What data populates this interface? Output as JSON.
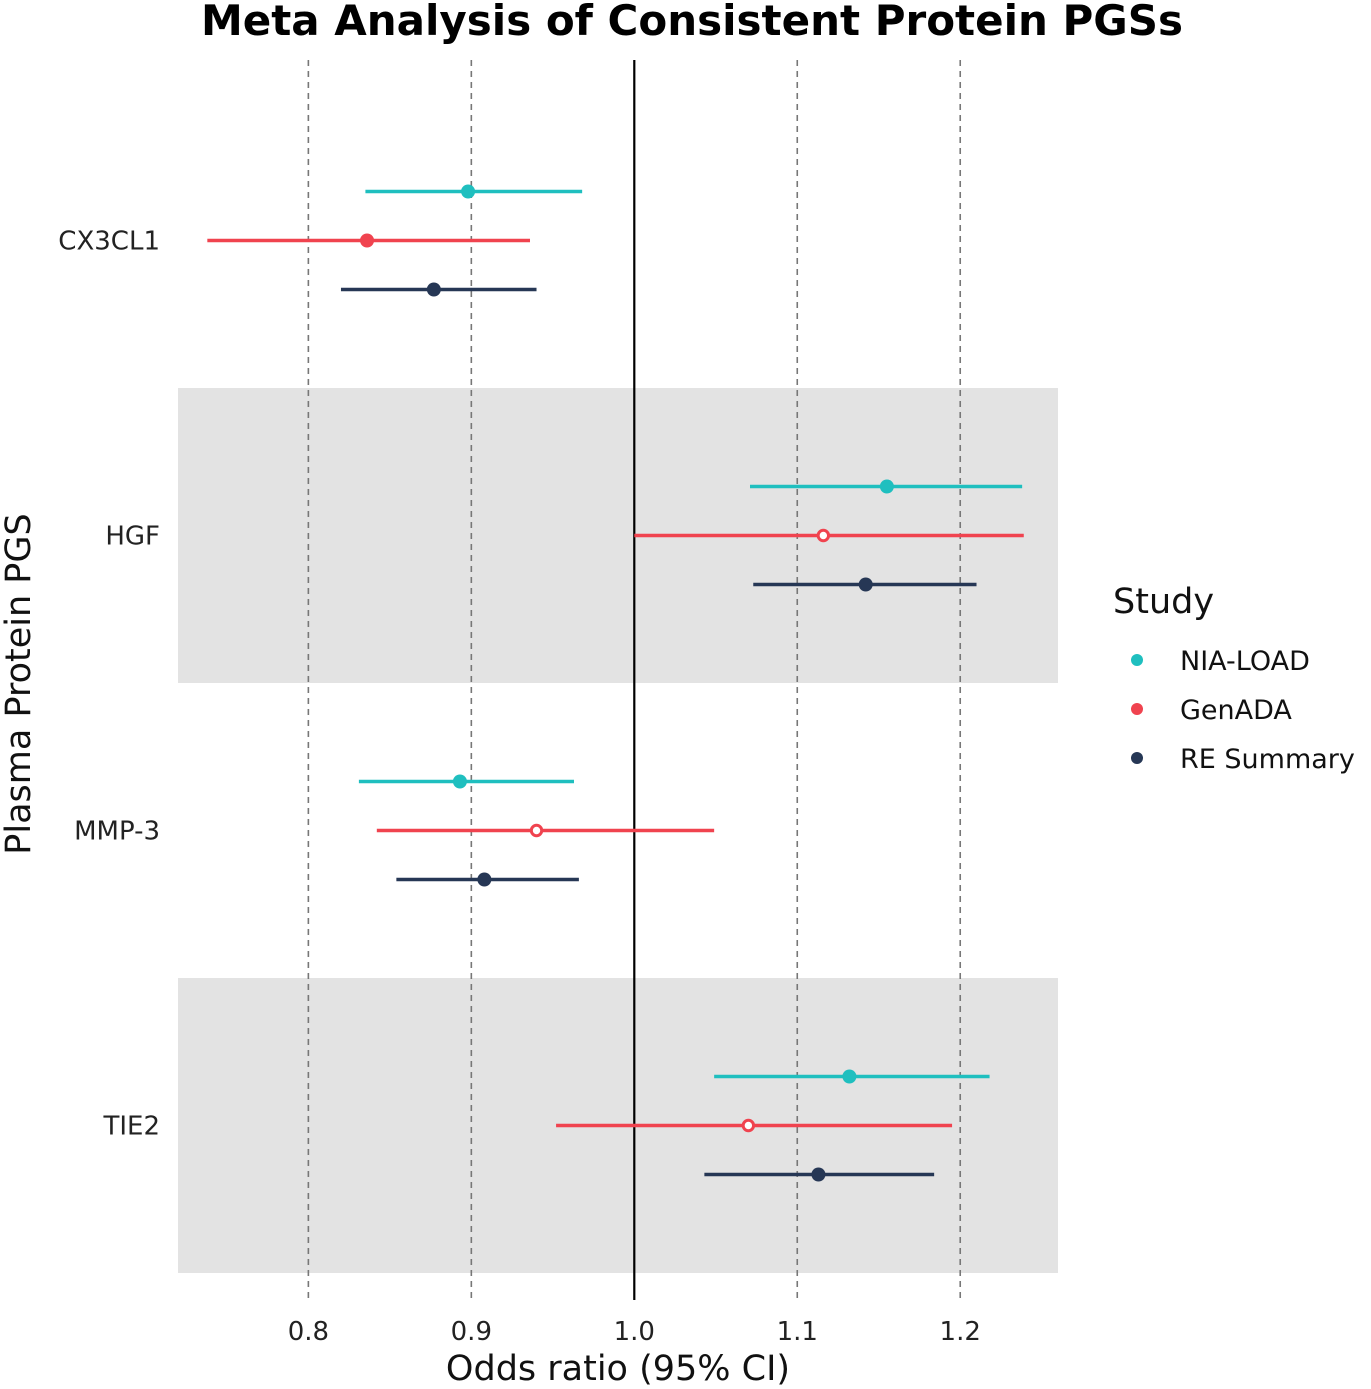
{
  "chart_data": {
    "type": "forest",
    "title": "Meta Analysis of Consistent Protein PGSs",
    "xlabel": "Odds ratio (95% CI)",
    "ylabel": "Plasma Protein PGS",
    "xlim": [
      0.72,
      1.26
    ],
    "x_ticks": [
      0.8,
      0.9,
      1.0,
      1.1,
      1.2
    ],
    "x_tick_labels": [
      "0.8",
      "0.9",
      "1.0",
      "1.1",
      "1.2"
    ],
    "reference_line": 1.0,
    "grid": "vertical dashed at ticks",
    "categories": [
      "CX3CL1",
      "HGF",
      "MMP-3",
      "TIE2"
    ],
    "shaded_categories": [
      "HGF",
      "TIE2"
    ],
    "legend": {
      "title": "Study",
      "position": "right"
    },
    "colors": {
      "NIA-LOAD": "#1fbfbf",
      "GenADA": "#f0434f",
      "RE Summary": "#263755",
      "band": "#e3e3e3",
      "gridline": "#777777",
      "refline": "#000000"
    },
    "series": [
      {
        "name": "NIA-LOAD",
        "estimates": [
          0.898,
          1.155,
          0.893,
          1.132
        ],
        "lower": [
          0.835,
          1.071,
          0.831,
          1.049
        ],
        "upper": [
          0.968,
          1.238,
          0.963,
          1.218
        ],
        "significant": [
          true,
          true,
          true,
          true
        ]
      },
      {
        "name": "GenADA",
        "estimates": [
          0.836,
          1.116,
          0.94,
          1.07
        ],
        "lower": [
          0.738,
          1.0,
          0.842,
          0.952
        ],
        "upper": [
          0.936,
          1.239,
          1.049,
          1.195
        ],
        "significant": [
          true,
          false,
          false,
          false
        ]
      },
      {
        "name": "RE Summary",
        "estimates": [
          0.877,
          1.142,
          0.908,
          1.113
        ],
        "lower": [
          0.82,
          1.073,
          0.854,
          1.043
        ],
        "upper": [
          0.94,
          1.21,
          0.966,
          1.184
        ],
        "significant": [
          true,
          true,
          true,
          true
        ]
      }
    ]
  }
}
